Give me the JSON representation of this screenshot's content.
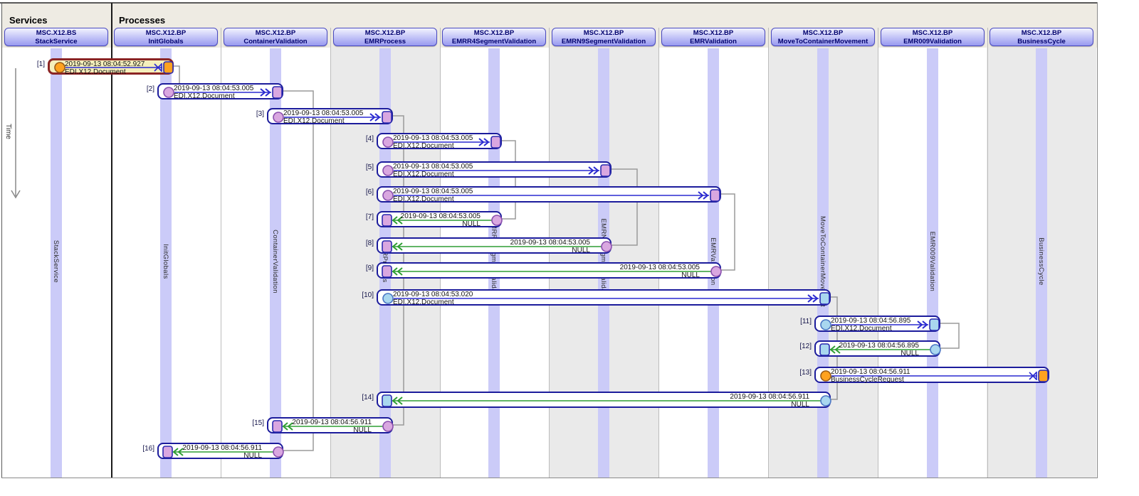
{
  "header": {
    "services_label": "Services",
    "processes_label": "Processes"
  },
  "time_axis": {
    "label": "Time"
  },
  "columns": [
    {
      "id": "StackService",
      "group": "services",
      "title_line1": "MSC.X12.BS",
      "title_line2": "StackService",
      "lane_label": "StackService",
      "shaded": false
    },
    {
      "id": "InitGlobals",
      "group": "processes",
      "title_line1": "MSC.X12.BP",
      "title_line2": "InitGlobals",
      "lane_label": "InitGlobals",
      "shaded": false
    },
    {
      "id": "ContainerValidation",
      "group": "processes",
      "title_line1": "MSC.X12.BP",
      "title_line2": "ContainerValidation",
      "lane_label": "ContainerValidation",
      "shaded": false
    },
    {
      "id": "EMRProcess",
      "group": "processes",
      "title_line1": "MSC.X12.BP",
      "title_line2": "EMRProcess",
      "lane_label": "EMRProcess",
      "shaded": true
    },
    {
      "id": "EMRR4SegmentValidation",
      "group": "processes",
      "title_line1": "MSC.X12.BP",
      "title_line2": "EMRR4SegmentValidation",
      "lane_label": "EMRR4SegmentValidation",
      "shaded": false
    },
    {
      "id": "EMRN9SegmentValidation",
      "group": "processes",
      "title_line1": "MSC.X12.BP",
      "title_line2": "EMRN9SegmentValidation",
      "lane_label": "EMRN9SegmentValidation",
      "shaded": true
    },
    {
      "id": "EMRValidation",
      "group": "processes",
      "title_line1": "MSC.X12.BP",
      "title_line2": "EMRValidation",
      "lane_label": "EMRValidation",
      "shaded": false
    },
    {
      "id": "MoveToContainerMovement",
      "group": "processes",
      "title_line1": "MSC.X12.BP",
      "title_line2": "MoveToContainerMovement",
      "lane_label": "MoveToContainerMovement",
      "shaded": true
    },
    {
      "id": "EMR009Validation",
      "group": "processes",
      "title_line1": "MSC.X12.BP",
      "title_line2": "EMR009Validation",
      "lane_label": "EMR009Validation",
      "shaded": false
    },
    {
      "id": "BusinessCycle",
      "group": "processes",
      "title_line1": "MSC.X12.BP",
      "title_line2": "BusinessCycle",
      "lane_label": "BusinessCycle",
      "shaded": true
    }
  ],
  "messages": [
    {
      "n": 1,
      "timestamp": "2019-09-13 08:04:52.927",
      "payload": "EDI.X12.Document",
      "from": "StackService",
      "to": "InitGlobals",
      "direction": "right",
      "color": "orange",
      "arrowhead": "cross",
      "selected": true
    },
    {
      "n": 2,
      "timestamp": "2019-09-13 08:04:53.005",
      "payload": "EDI.X12.Document",
      "from": "InitGlobals",
      "to": "ContainerValidation",
      "direction": "right",
      "color": "pink",
      "arrowhead": "chevron",
      "selected": false
    },
    {
      "n": 3,
      "timestamp": "2019-09-13 08:04:53.005",
      "payload": "EDI.X12.Document",
      "from": "ContainerValidation",
      "to": "EMRProcess",
      "direction": "right",
      "color": "pink",
      "arrowhead": "chevron",
      "selected": false
    },
    {
      "n": 4,
      "timestamp": "2019-09-13 08:04:53.005",
      "payload": "EDI.X12.Document",
      "from": "EMRProcess",
      "to": "EMRR4SegmentValidation",
      "direction": "right",
      "color": "pink",
      "arrowhead": "chevron",
      "selected": false
    },
    {
      "n": 5,
      "timestamp": "2019-09-13 08:04:53.005",
      "payload": "EDI.X12.Document",
      "from": "EMRProcess",
      "to": "EMRN9SegmentValidation",
      "direction": "right",
      "color": "pink",
      "arrowhead": "chevron",
      "selected": false
    },
    {
      "n": 6,
      "timestamp": "2019-09-13 08:04:53.005",
      "payload": "EDI.X12.Document",
      "from": "EMRProcess",
      "to": "EMRValidation",
      "direction": "right",
      "color": "pink",
      "arrowhead": "chevron",
      "selected": false
    },
    {
      "n": 7,
      "timestamp": "2019-09-13 08:04:53.005",
      "payload": "NULL",
      "from": "EMRR4SegmentValidation",
      "to": "EMRProcess",
      "direction": "left",
      "color": "pink",
      "arrowhead": "chevron",
      "selected": false
    },
    {
      "n": 8,
      "timestamp": "2019-09-13 08:04:53.005",
      "payload": "NULL",
      "from": "EMRN9SegmentValidation",
      "to": "EMRProcess",
      "direction": "left",
      "color": "pink",
      "arrowhead": "chevron",
      "selected": false
    },
    {
      "n": 9,
      "timestamp": "2019-09-13 08:04:53.005",
      "payload": "NULL",
      "from": "EMRValidation",
      "to": "EMRProcess",
      "direction": "left",
      "color": "pink",
      "arrowhead": "chevron",
      "selected": false
    },
    {
      "n": 10,
      "timestamp": "2019-09-13 08:04:53.020",
      "payload": "EDI.X12.Document",
      "from": "EMRProcess",
      "to": "MoveToContainerMovement",
      "direction": "right",
      "color": "cyan",
      "arrowhead": "chevron",
      "selected": false
    },
    {
      "n": 11,
      "timestamp": "2019-09-13 08:04:56.895",
      "payload": "EDI.X12.Document",
      "from": "MoveToContainerMovement",
      "to": "EMR009Validation",
      "direction": "right",
      "color": "cyan",
      "arrowhead": "chevron",
      "selected": false
    },
    {
      "n": 12,
      "timestamp": "2019-09-13 08:04:56.895",
      "payload": "NULL",
      "from": "EMR009Validation",
      "to": "MoveToContainerMovement",
      "direction": "left",
      "color": "cyan",
      "arrowhead": "chevron",
      "selected": false
    },
    {
      "n": 13,
      "timestamp": "2019-09-13 08:04:56.911",
      "payload": "BusinessCycleRequest",
      "from": "MoveToContainerMovement",
      "to": "BusinessCycle",
      "direction": "right",
      "color": "orange",
      "arrowhead": "cross",
      "selected": false
    },
    {
      "n": 14,
      "timestamp": "2019-09-13 08:04:56.911",
      "payload": "NULL",
      "from": "MoveToContainerMovement",
      "to": "EMRProcess",
      "direction": "left",
      "color": "cyan",
      "arrowhead": "chevron",
      "selected": false
    },
    {
      "n": 15,
      "timestamp": "2019-09-13 08:04:56.911",
      "payload": "NULL",
      "from": "EMRProcess",
      "to": "ContainerValidation",
      "direction": "left",
      "color": "pink",
      "arrowhead": "chevron",
      "selected": false
    },
    {
      "n": 16,
      "timestamp": "2019-09-13 08:04:56.911",
      "payload": "NULL",
      "from": "ContainerValidation",
      "to": "InitGlobals",
      "direction": "left",
      "color": "pink",
      "arrowhead": "chevron",
      "selected": false
    }
  ],
  "flow_links": [
    {
      "from": 1,
      "to": 2,
      "entry": "top"
    },
    {
      "from": 2,
      "to": 16,
      "entry": "side"
    },
    {
      "from": 3,
      "to": 15,
      "entry": "side"
    },
    {
      "from": 4,
      "to": 7,
      "entry": "side"
    },
    {
      "from": 5,
      "to": 8,
      "entry": "side"
    },
    {
      "from": 6,
      "to": 9,
      "entry": "side"
    },
    {
      "from": 10,
      "to": 14,
      "entry": "side"
    },
    {
      "from": 11,
      "to": 12,
      "entry": "side"
    }
  ],
  "colors": {
    "lane_band": "#cbcbf8",
    "shaded_column": "#eaeaea",
    "box_border": "#1c1c9c",
    "selected_border": "#8b2424",
    "selected_bg": "#f5efbc",
    "blue_arrow": "#2a2ad0",
    "green_arrow": "#2f9e33",
    "connector": "#9a9a9a",
    "pink_fill": "#d9a7e0",
    "pink_stroke": "#8a4fae",
    "cyan_fill": "#a9d7ef",
    "cyan_stroke": "#4a76c4",
    "orange_fill": "#ffa21f",
    "orange_stroke": "#9a5a14",
    "square_stroke": "#2b2bb0"
  }
}
